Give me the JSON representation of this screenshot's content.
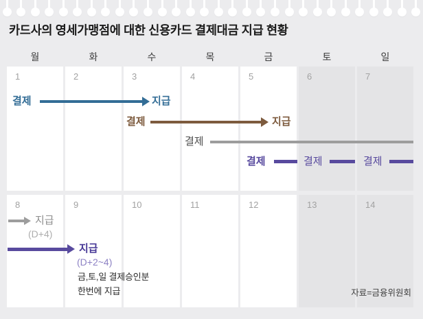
{
  "title": "카드사의 영세가맹점에 대한 신용카드 결제대금 지급 현황",
  "source": "자료=금융위원회",
  "decor": {
    "pin_icon_count": 30
  },
  "colors": {
    "page_bg": "#ececee",
    "cell_bg": "#ffffff",
    "weekend_bg": "#e4e4e6",
    "blue": "#336d96",
    "brown": "#7d5b3e",
    "gray": "#9d9d9d",
    "purple": "#584a9e"
  },
  "calendar": {
    "weekdays": [
      "월",
      "화",
      "수",
      "목",
      "금",
      "토",
      "일"
    ],
    "days": [
      "1",
      "2",
      "3",
      "4",
      "5",
      "6",
      "7",
      "8",
      "9",
      "10",
      "11",
      "12",
      "13",
      "14"
    ],
    "weekend_days": [
      "6",
      "7",
      "13",
      "14"
    ]
  },
  "flows": {
    "mon_to_wed": {
      "start": "결제",
      "end": "지급"
    },
    "wed_to_fri": {
      "start": "결제",
      "end": "지급"
    },
    "thu_to_mon": {
      "start": "결제",
      "end": "지급",
      "note": "(D+4)"
    },
    "weekend_batch": {
      "start_fri": "결제",
      "start_sat": "결제",
      "start_sun": "결제",
      "end": "지급",
      "note": "(D+2~4)",
      "desc_line1": "금,토,일 결제승인분",
      "desc_line2": "한번에 지급"
    }
  }
}
